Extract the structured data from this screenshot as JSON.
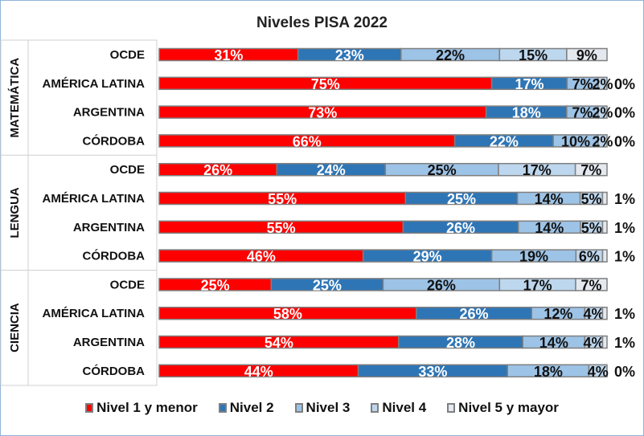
{
  "chart_data": {
    "type": "bar",
    "orientation": "horizontal",
    "stacked": "percent",
    "title": "Niveles PISA 2022",
    "legend_position": "bottom",
    "grid": false,
    "series": [
      {
        "name": "Nivel 1 y menor",
        "color": "#ff0000"
      },
      {
        "name": "Nivel 2",
        "color": "#2e75b6"
      },
      {
        "name": "Nivel 3",
        "color": "#9dc3e6"
      },
      {
        "name": "Nivel 4",
        "color": "#bdd7ee"
      },
      {
        "name": "Nivel 5 y mayor",
        "color": "#e4e9f0"
      }
    ],
    "groups": [
      {
        "name": "MATEMÁTICA",
        "rows": [
          {
            "category": "OCDE",
            "values": [
              31,
              23,
              22,
              15,
              9
            ]
          },
          {
            "category": "AMÉRICA LATINA",
            "values": [
              75,
              17,
              7,
              2,
              0
            ]
          },
          {
            "category": "ARGENTINA",
            "values": [
              73,
              18,
              7,
              2,
              0
            ]
          },
          {
            "category": "CÓRDOBA",
            "values": [
              66,
              22,
              10,
              2,
              0
            ]
          }
        ]
      },
      {
        "name": "LENGUA",
        "rows": [
          {
            "category": "OCDE",
            "values": [
              26,
              24,
              25,
              17,
              7
            ]
          },
          {
            "category": "AMÉRICA LATINA",
            "values": [
              55,
              25,
              14,
              5,
              1
            ]
          },
          {
            "category": "ARGENTINA",
            "values": [
              55,
              26,
              14,
              5,
              1
            ]
          },
          {
            "category": "CÓRDOBA",
            "values": [
              46,
              29,
              19,
              6,
              1
            ]
          }
        ]
      },
      {
        "name": "CIENCIA",
        "rows": [
          {
            "category": "OCDE",
            "values": [
              25,
              25,
              26,
              17,
              7
            ]
          },
          {
            "category": "AMÉRICA LATINA",
            "values": [
              58,
              26,
              12,
              4,
              1
            ]
          },
          {
            "category": "ARGENTINA",
            "values": [
              54,
              28,
              14,
              4,
              1
            ]
          },
          {
            "category": "CÓRDOBA",
            "values": [
              44,
              33,
              18,
              4,
              0
            ]
          }
        ]
      }
    ]
  }
}
